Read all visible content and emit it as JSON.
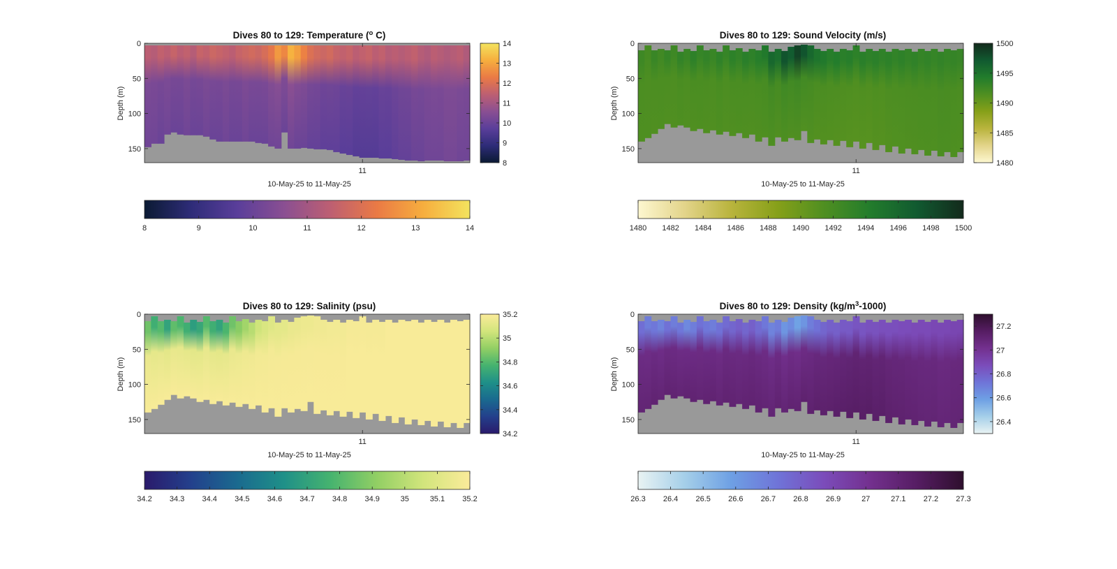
{
  "chart_data": [
    {
      "type": "heatmap",
      "title": "Dives 80 to 129: Temperature (",
      "title_sup": "o",
      "title_tail": " C)",
      "xlabel": "10-May-25 to 11-May-25",
      "ylabel": "Depth (m)",
      "x_tick_labels": [
        "11"
      ],
      "y_tick_labels": [
        "0",
        "50",
        "100",
        "150"
      ],
      "y_ticks": [
        0,
        50,
        100,
        150
      ],
      "ylim": [
        0,
        170
      ],
      "y_reversed": true,
      "x_tick_fraction": [
        0.67
      ],
      "colorbar_range": [
        8,
        14
      ],
      "right_colorbar_ticks": [
        "8",
        "9",
        "10",
        "11",
        "12",
        "13",
        "14"
      ],
      "bottom_colorbar_ticks": [
        "8",
        "9",
        "10",
        "11",
        "12",
        "13",
        "14"
      ],
      "colormap": [
        "#0b1a33",
        "#2e2c78",
        "#5a3e9a",
        "#8a4f92",
        "#bd5f72",
        "#ea7a45",
        "#f6ae3e",
        "#f3e35e"
      ],
      "background_color": "#999999",
      "surface_depth_m": 3,
      "seafloor_depth_m": [
        148,
        143,
        143,
        130,
        127,
        130,
        131,
        131,
        131,
        133,
        137,
        140,
        140,
        140,
        140,
        140,
        140,
        142,
        143,
        147,
        150,
        127,
        150,
        150,
        149,
        150,
        151,
        151,
        152,
        155,
        157,
        159,
        161,
        163,
        163,
        163,
        164,
        164,
        165,
        166,
        167,
        167,
        168,
        167,
        167,
        167,
        168,
        168,
        168,
        167
      ],
      "profile_surface_values": [
        11.4,
        11.3,
        11.5,
        11.4,
        11.6,
        11.4,
        11.5,
        11.3,
        11.6,
        11.5,
        11.7,
        11.6,
        11.5,
        11.4,
        11.6,
        11.7,
        11.8,
        11.7,
        11.9,
        12.2,
        12.8,
        12.5,
        13.2,
        12.9,
        12.4,
        12.0,
        11.8,
        11.7,
        11.8,
        11.6,
        11.5,
        11.6,
        11.4,
        11.5,
        11.6,
        11.4,
        11.5,
        11.3,
        11.4,
        11.3,
        11.4,
        11.5,
        11.3,
        11.2,
        11.4,
        11.3,
        11.2,
        11.3,
        11.4,
        11.2
      ],
      "profile_deep_values": [
        10.1,
        10.1,
        10.0,
        10.1,
        10.0,
        10.0,
        10.1,
        10.0,
        10.0,
        10.1,
        10.0,
        10.0,
        10.1,
        10.0,
        10.0,
        10.1,
        10.0,
        10.0,
        10.0,
        10.1,
        10.1,
        10.0,
        10.1,
        10.0,
        10.0,
        9.9,
        9.9,
        9.8,
        9.8,
        9.8,
        9.7,
        9.7,
        9.6,
        9.6,
        9.6,
        9.6,
        9.7,
        9.7,
        9.8,
        9.9,
        9.9,
        10.0,
        10.0,
        10.1,
        10.1,
        10.1,
        10.2,
        10.2,
        10.1,
        10.1
      ]
    },
    {
      "type": "heatmap",
      "title": "Dives 80 to 129: Sound Velocity (m/s)",
      "xlabel": "10-May-25 to 11-May-25",
      "ylabel": "Depth (m)",
      "x_tick_labels": [
        "11"
      ],
      "y_tick_labels": [
        "0",
        "50",
        "100",
        "150"
      ],
      "y_ticks": [
        0,
        50,
        100,
        150
      ],
      "ylim": [
        0,
        170
      ],
      "y_reversed": true,
      "x_tick_fraction": [
        0.67
      ],
      "colorbar_range": [
        1480,
        1500
      ],
      "right_colorbar_ticks": [
        "1480",
        "1485",
        "1490",
        "1495",
        "1500"
      ],
      "bottom_colorbar_ticks": [
        "1480",
        "1482",
        "1484",
        "1486",
        "1488",
        "1490",
        "1492",
        "1494",
        "1496",
        "1498",
        "1500"
      ],
      "colormap": [
        "#fdf7d0",
        "#e3d48a",
        "#b9b43d",
        "#86a019",
        "#4f8f21",
        "#227c2c",
        "#115a30",
        "#132a1c"
      ],
      "background_color": "#999999",
      "surface_depth_m": [
        10,
        3,
        10,
        8,
        10,
        3,
        12,
        8,
        11,
        3,
        10,
        8,
        12,
        3,
        10,
        7,
        12,
        8,
        10,
        3,
        12,
        8,
        11,
        5,
        3,
        2,
        3,
        8,
        11,
        8,
        12,
        8,
        10,
        3,
        12,
        8,
        11,
        8,
        12,
        8,
        10,
        8,
        12,
        8,
        11,
        8,
        12,
        8,
        10,
        8
      ],
      "seafloor_depth_m": [
        140,
        135,
        129,
        122,
        115,
        120,
        117,
        120,
        125,
        122,
        128,
        124,
        130,
        126,
        132,
        128,
        135,
        130,
        140,
        134,
        146,
        134,
        140,
        135,
        138,
        125,
        142,
        137,
        144,
        138,
        146,
        139,
        148,
        140,
        150,
        142,
        152,
        145,
        155,
        147,
        157,
        150,
        158,
        152,
        160,
        153,
        161,
        155,
        162,
        155
      ],
      "profile_surface_values": [
        1492.5,
        1492.0,
        1492.8,
        1492.3,
        1493.0,
        1492.5,
        1493.2,
        1492.8,
        1493.5,
        1493.0,
        1493.2,
        1492.8,
        1493.4,
        1493.0,
        1493.6,
        1493.2,
        1493.8,
        1493.5,
        1494.0,
        1494.5,
        1496.0,
        1495.5,
        1497.5,
        1497.0,
        1498.5,
        1497.5,
        1496.0,
        1495.0,
        1494.5,
        1494.0,
        1494.2,
        1493.8,
        1494.0,
        1493.6,
        1493.8,
        1493.5,
        1493.7,
        1493.4,
        1493.6,
        1493.3,
        1493.5,
        1493.2,
        1493.4,
        1493.1,
        1493.3,
        1493.0,
        1493.2,
        1493.0,
        1493.1,
        1492.9
      ],
      "profile_deep_values": [
        1491.5,
        1491.5,
        1491.4,
        1491.5,
        1491.4,
        1491.4,
        1491.5,
        1491.4,
        1491.4,
        1491.5,
        1491.4,
        1491.4,
        1491.5,
        1491.4,
        1491.4,
        1491.5,
        1491.4,
        1491.4,
        1491.4,
        1491.5,
        1491.5,
        1491.4,
        1491.5,
        1491.4,
        1491.4,
        1491.3,
        1491.3,
        1491.2,
        1491.2,
        1491.2,
        1491.1,
        1491.1,
        1491.0,
        1491.0,
        1491.0,
        1491.0,
        1491.1,
        1491.1,
        1491.2,
        1491.3,
        1491.3,
        1491.4,
        1491.4,
        1491.5,
        1491.5,
        1491.5,
        1491.6,
        1491.6,
        1491.5,
        1491.5
      ]
    },
    {
      "type": "heatmap",
      "title": "Dives 80 to 129: Salinity (psu)",
      "xlabel": "10-May-25 to 11-May-25",
      "ylabel": "Depth (m)",
      "x_tick_labels": [
        "11"
      ],
      "y_tick_labels": [
        "0",
        "50",
        "100",
        "150"
      ],
      "y_ticks": [
        0,
        50,
        100,
        150
      ],
      "ylim": [
        0,
        170
      ],
      "y_reversed": true,
      "x_tick_fraction": [
        0.67
      ],
      "colorbar_range": [
        34.2,
        35.2
      ],
      "right_colorbar_ticks": [
        "34.2",
        "34.4",
        "34.6",
        "34.8",
        "35",
        "35.2"
      ],
      "bottom_colorbar_ticks": [
        "34.2",
        "34.3",
        "34.4",
        "34.5",
        "34.6",
        "34.7",
        "34.8",
        "34.9",
        "35",
        "35.1",
        "35.2"
      ],
      "colormap": [
        "#2a1a6b",
        "#23408c",
        "#1a6a8f",
        "#1f9088",
        "#46b36f",
        "#92cf64",
        "#d2e57c",
        "#fbeb9a"
      ],
      "background_color": "#999999",
      "surface_depth_m": [
        10,
        3,
        10,
        8,
        10,
        3,
        12,
        8,
        11,
        3,
        10,
        8,
        12,
        3,
        10,
        7,
        12,
        8,
        10,
        3,
        12,
        8,
        11,
        5,
        3,
        2,
        3,
        8,
        11,
        8,
        12,
        8,
        10,
        3,
        12,
        8,
        11,
        8,
        12,
        8,
        10,
        8,
        12,
        8,
        11,
        8,
        12,
        8,
        10,
        8
      ],
      "seafloor_depth_m": [
        140,
        135,
        129,
        122,
        115,
        120,
        117,
        120,
        125,
        122,
        128,
        124,
        130,
        126,
        132,
        128,
        135,
        130,
        140,
        134,
        146,
        134,
        140,
        135,
        138,
        125,
        142,
        137,
        144,
        138,
        146,
        139,
        148,
        140,
        150,
        142,
        152,
        145,
        155,
        147,
        157,
        150,
        158,
        152,
        160,
        153,
        161,
        155,
        162,
        155
      ],
      "profile_surface_values": [
        34.85,
        34.75,
        34.8,
        34.7,
        34.82,
        34.78,
        34.75,
        34.68,
        34.72,
        34.8,
        34.75,
        34.7,
        34.78,
        34.85,
        34.9,
        34.95,
        35.0,
        35.05,
        35.08,
        35.1,
        35.12,
        35.12,
        35.14,
        35.14,
        35.15,
        35.15,
        35.16,
        35.16,
        35.17,
        35.17,
        35.17,
        35.18,
        35.18,
        35.18,
        35.18,
        35.18,
        35.18,
        35.19,
        35.19,
        35.19,
        35.19,
        35.19,
        35.19,
        35.19,
        35.19,
        35.19,
        35.19,
        35.19,
        35.19,
        35.19
      ],
      "profile_deep_values": [
        35.19,
        35.19,
        35.19,
        35.19,
        35.19,
        35.19,
        35.19,
        35.19,
        35.19,
        35.19,
        35.19,
        35.19,
        35.19,
        35.19,
        35.19,
        35.19,
        35.19,
        35.19,
        35.19,
        35.19,
        35.19,
        35.19,
        35.19,
        35.19,
        35.19,
        35.19,
        35.19,
        35.19,
        35.19,
        35.19,
        35.19,
        35.19,
        35.19,
        35.19,
        35.19,
        35.19,
        35.19,
        35.19,
        35.19,
        35.19,
        35.19,
        35.19,
        35.19,
        35.19,
        35.19,
        35.19,
        35.19,
        35.19,
        35.19,
        35.19
      ]
    },
    {
      "type": "heatmap",
      "title": "Dives 80 to 129: Density (kg/m",
      "title_sup": "3",
      "title_tail": "-1000)",
      "xlabel": "10-May-25 to 11-May-25",
      "ylabel": "Depth (m)",
      "x_tick_labels": [
        "11"
      ],
      "y_tick_labels": [
        "0",
        "50",
        "100",
        "150"
      ],
      "y_ticks": [
        0,
        50,
        100,
        150
      ],
      "ylim": [
        0,
        170
      ],
      "y_reversed": true,
      "x_tick_fraction": [
        0.67
      ],
      "colorbar_range": [
        26.3,
        27.3
      ],
      "right_colorbar_ticks": [
        "26.4",
        "26.6",
        "26.8",
        "27",
        "27.2"
      ],
      "right_colorbar_tick_values": [
        26.4,
        26.6,
        26.8,
        27.0,
        27.2
      ],
      "bottom_colorbar_ticks": [
        "26.3",
        "26.4",
        "26.5",
        "26.6",
        "26.7",
        "26.8",
        "26.9",
        "27",
        "27.1",
        "27.2",
        "27.3"
      ],
      "colormap": [
        "#e9f3f3",
        "#a5cfe9",
        "#6ea0e4",
        "#6f74d8",
        "#7b4cba",
        "#73308e",
        "#561d63",
        "#2e0f2d"
      ],
      "background_color": "#999999",
      "surface_depth_m": [
        10,
        3,
        10,
        8,
        10,
        3,
        12,
        8,
        11,
        3,
        10,
        8,
        12,
        3,
        10,
        7,
        12,
        8,
        10,
        3,
        12,
        8,
        11,
        5,
        3,
        2,
        3,
        8,
        11,
        8,
        12,
        8,
        10,
        3,
        12,
        8,
        11,
        8,
        12,
        8,
        10,
        8,
        12,
        8,
        11,
        8,
        12,
        8,
        10,
        8
      ],
      "seafloor_depth_m": [
        140,
        135,
        129,
        122,
        115,
        120,
        117,
        120,
        125,
        122,
        128,
        124,
        130,
        126,
        132,
        128,
        135,
        130,
        140,
        134,
        146,
        134,
        140,
        135,
        138,
        125,
        142,
        137,
        144,
        138,
        146,
        139,
        148,
        140,
        150,
        142,
        152,
        145,
        155,
        147,
        157,
        150,
        158,
        152,
        160,
        153,
        161,
        155,
        162,
        155
      ],
      "profile_surface_values": [
        26.75,
        26.7,
        26.72,
        26.68,
        26.74,
        26.7,
        26.72,
        26.66,
        26.7,
        26.74,
        26.72,
        26.7,
        26.74,
        26.76,
        26.78,
        26.8,
        26.78,
        26.8,
        26.76,
        26.72,
        26.68,
        26.7,
        26.62,
        26.65,
        26.58,
        26.62,
        26.7,
        26.74,
        26.78,
        26.8,
        26.8,
        26.82,
        26.82,
        26.84,
        26.84,
        26.85,
        26.85,
        26.86,
        26.86,
        26.86,
        26.87,
        26.87,
        26.88,
        26.88,
        26.88,
        26.89,
        26.89,
        26.89,
        26.9,
        26.9
      ],
      "profile_deep_values": [
        27.1,
        27.1,
        27.11,
        27.1,
        27.11,
        27.11,
        27.1,
        27.11,
        27.11,
        27.1,
        27.11,
        27.11,
        27.1,
        27.11,
        27.11,
        27.1,
        27.11,
        27.11,
        27.11,
        27.1,
        27.1,
        27.11,
        27.1,
        27.11,
        27.11,
        27.12,
        27.12,
        27.13,
        27.13,
        27.13,
        27.14,
        27.14,
        27.15,
        27.15,
        27.15,
        27.15,
        27.14,
        27.14,
        27.13,
        27.12,
        27.12,
        27.11,
        27.11,
        27.1,
        27.1,
        27.1,
        27.09,
        27.09,
        27.1,
        27.1
      ]
    }
  ]
}
